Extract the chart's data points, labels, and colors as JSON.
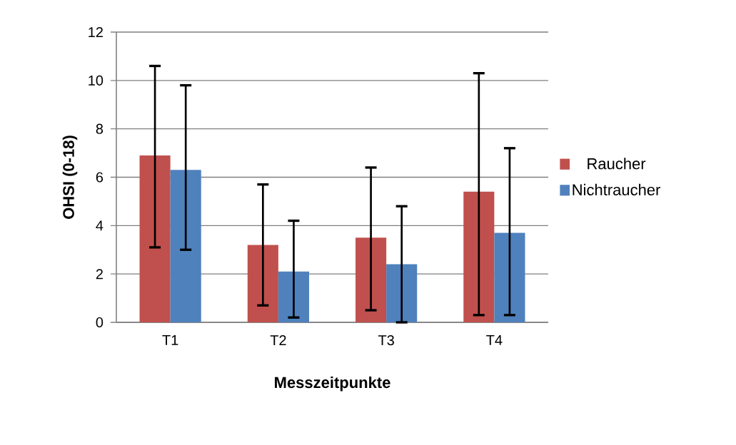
{
  "chart_data": {
    "type": "bar",
    "xlabel": "Messzeitpunkte",
    "ylabel": "OHSI (0-18)",
    "categories": [
      "T1",
      "T2",
      "T3",
      "T4"
    ],
    "series": [
      {
        "name": "Raucher",
        "color": "#c0504d",
        "values": [
          6.9,
          3.2,
          3.5,
          5.4
        ],
        "errors": [
          [
            3.1,
            10.6
          ],
          [
            0.7,
            5.7
          ],
          [
            0.5,
            6.4
          ],
          [
            0.3,
            10.3
          ]
        ]
      },
      {
        "name": "Nichtraucher",
        "color": "#4f81bd",
        "values": [
          6.3,
          2.1,
          2.4,
          3.7
        ],
        "errors": [
          [
            3.0,
            9.8
          ],
          [
            0.2,
            4.2
          ],
          [
            0.0,
            4.8
          ],
          [
            0.3,
            7.2
          ]
        ]
      }
    ],
    "ylim": [
      0,
      12
    ],
    "yticks": [
      0,
      2,
      4,
      6,
      8,
      10,
      12
    ],
    "grid": "y",
    "legend": "right"
  }
}
